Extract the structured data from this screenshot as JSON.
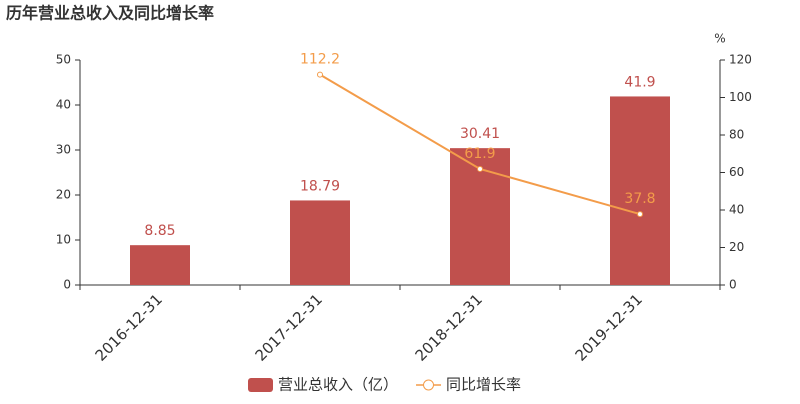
{
  "chart_data": {
    "type": "combo",
    "title": "历年营业总收入及同比增长率",
    "categories": [
      "2016-12-31",
      "2017-12-31",
      "2018-12-31",
      "2019-12-31"
    ],
    "series": [
      {
        "name": "营业总收入（亿）",
        "type": "bar",
        "color": "#c0504d",
        "values": [
          8.85,
          18.79,
          30.41,
          41.9
        ]
      },
      {
        "name": "同比增长率",
        "type": "line",
        "axis": "y2",
        "color": "#f39c4a",
        "values": [
          null,
          112.2,
          61.9,
          37.8
        ]
      }
    ],
    "ylim": [
      0,
      50
    ],
    "yticks": [
      0,
      10,
      20,
      30,
      40,
      50
    ],
    "y2lim": [
      0,
      120
    ],
    "y2ticks": [
      0,
      20,
      40,
      60,
      80,
      100,
      120
    ],
    "y2_label": "%",
    "legend": "bottom"
  }
}
